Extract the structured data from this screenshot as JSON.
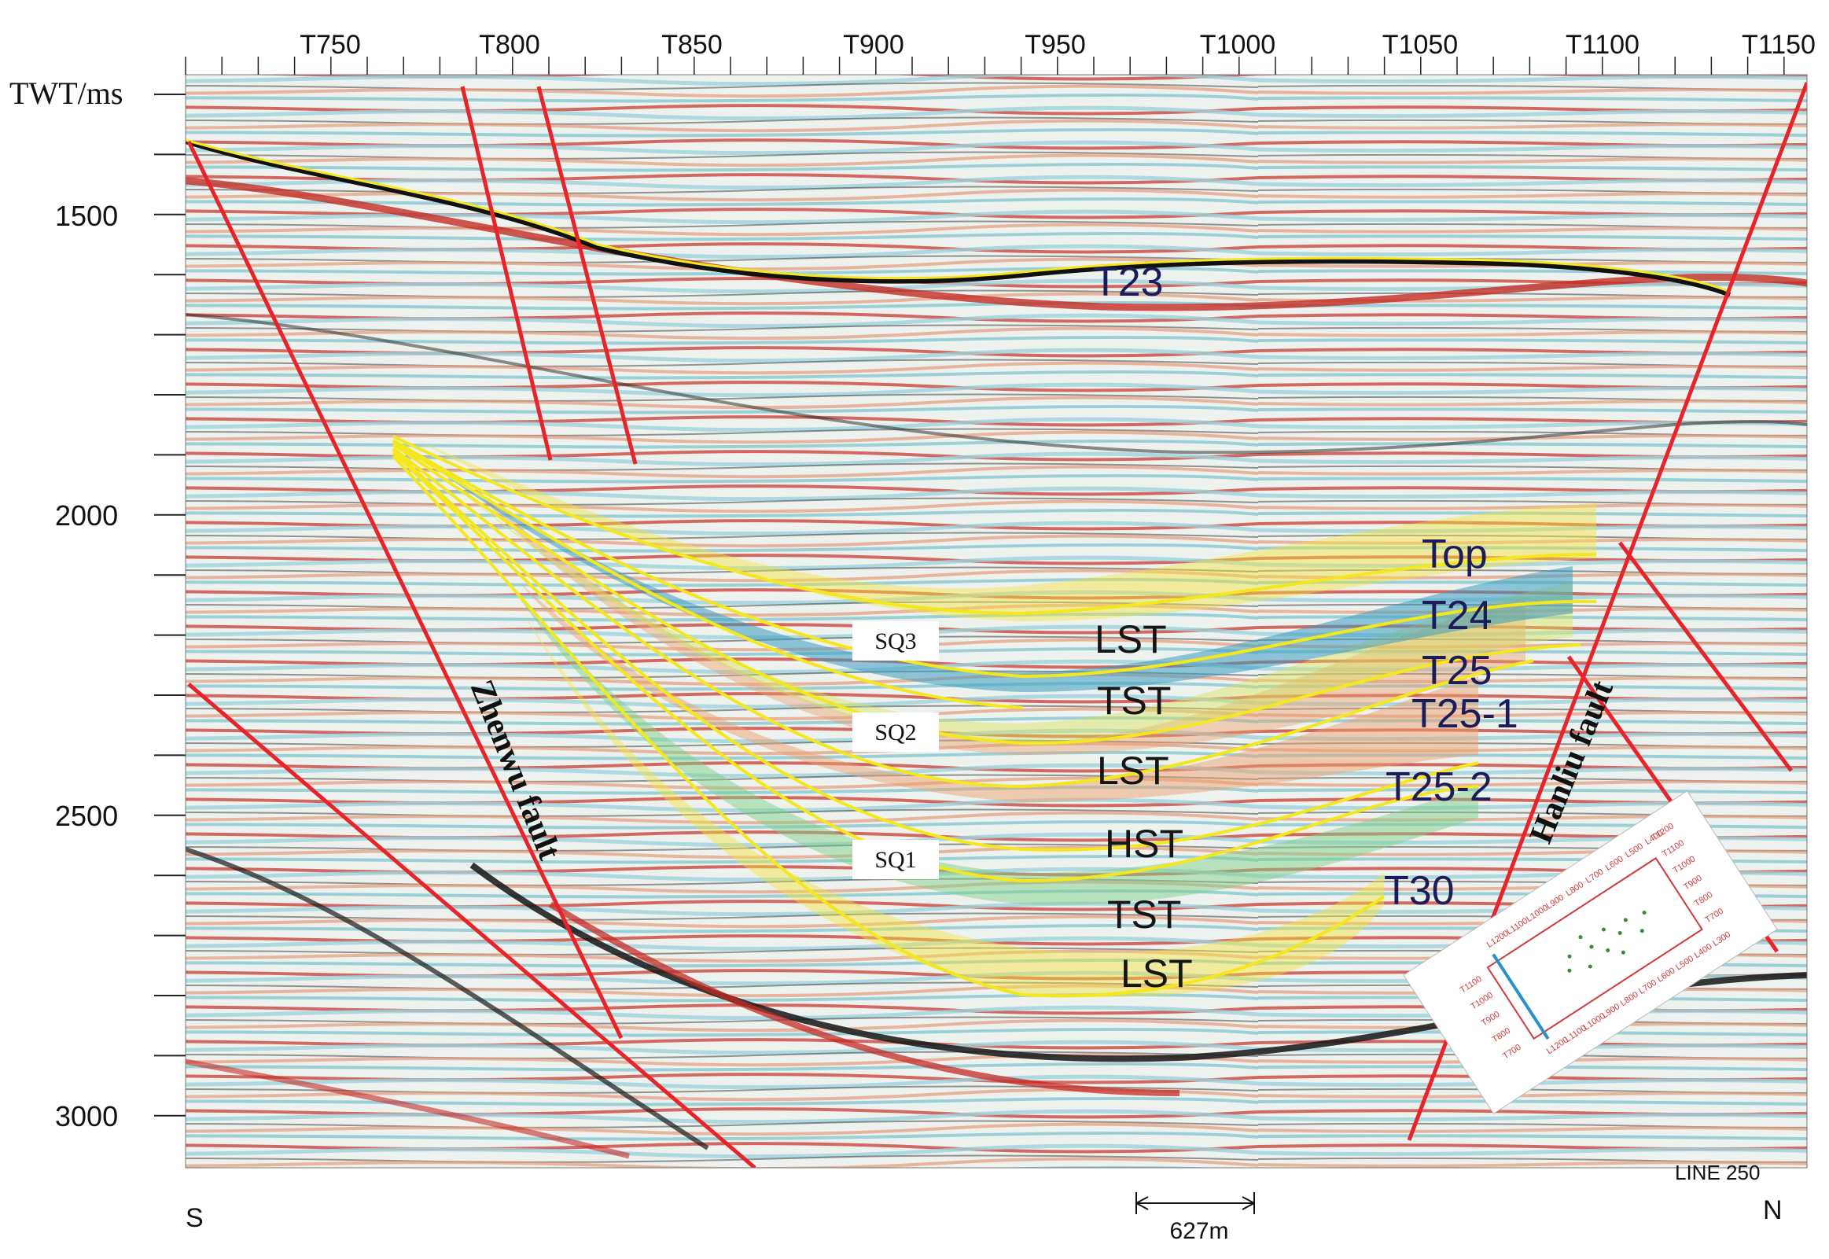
{
  "axes": {
    "twt_title": "TWT/ms",
    "twt_ticks": [
      "1500",
      "2000",
      "2500",
      "3000"
    ],
    "trace_ticks": [
      "T750",
      "T800",
      "T850",
      "T900",
      "T950",
      "T1000",
      "T1050",
      "T1100",
      "T1150"
    ]
  },
  "horizons": {
    "t23": "T23",
    "top": "Top",
    "t24": "T24",
    "t25": "T25",
    "t25_1": "T25-1",
    "t25_2": "T25-2",
    "t30": "T30"
  },
  "systems_tracts": [
    "LST",
    "TST",
    "LST",
    "HST",
    "TST",
    "LST"
  ],
  "sequences": [
    "SQ3",
    "SQ2",
    "SQ1"
  ],
  "faults": {
    "zhenwu": "Zhenwu fault",
    "hanliu": "Hanliu fault"
  },
  "orientation": {
    "south": "S",
    "north": "N"
  },
  "line_name": "LINE 250",
  "scale_bar": "627m",
  "inset_map": {
    "top_row": [
      "L1200",
      "L1100",
      "L1000",
      "L900",
      "L800",
      "L700",
      "L600",
      "L500",
      "L400"
    ],
    "bottom_row": [
      "L1200",
      "L1100",
      "L1000",
      "L900",
      "L800",
      "L700",
      "L600",
      "L500",
      "L400",
      "L300"
    ],
    "right_col": [
      "T1200",
      "T1100",
      "T1000",
      "T900",
      "T800",
      "T700"
    ],
    "left_col": [
      "T1100",
      "T1000",
      "T900",
      "T800",
      "T700"
    ]
  },
  "colors": {
    "fault": "#e8232a",
    "horizon": "#f4e81c",
    "t23_line": "#111111",
    "seismic_red": "#c2332b",
    "seismic_blue": "#6fb8c8"
  }
}
